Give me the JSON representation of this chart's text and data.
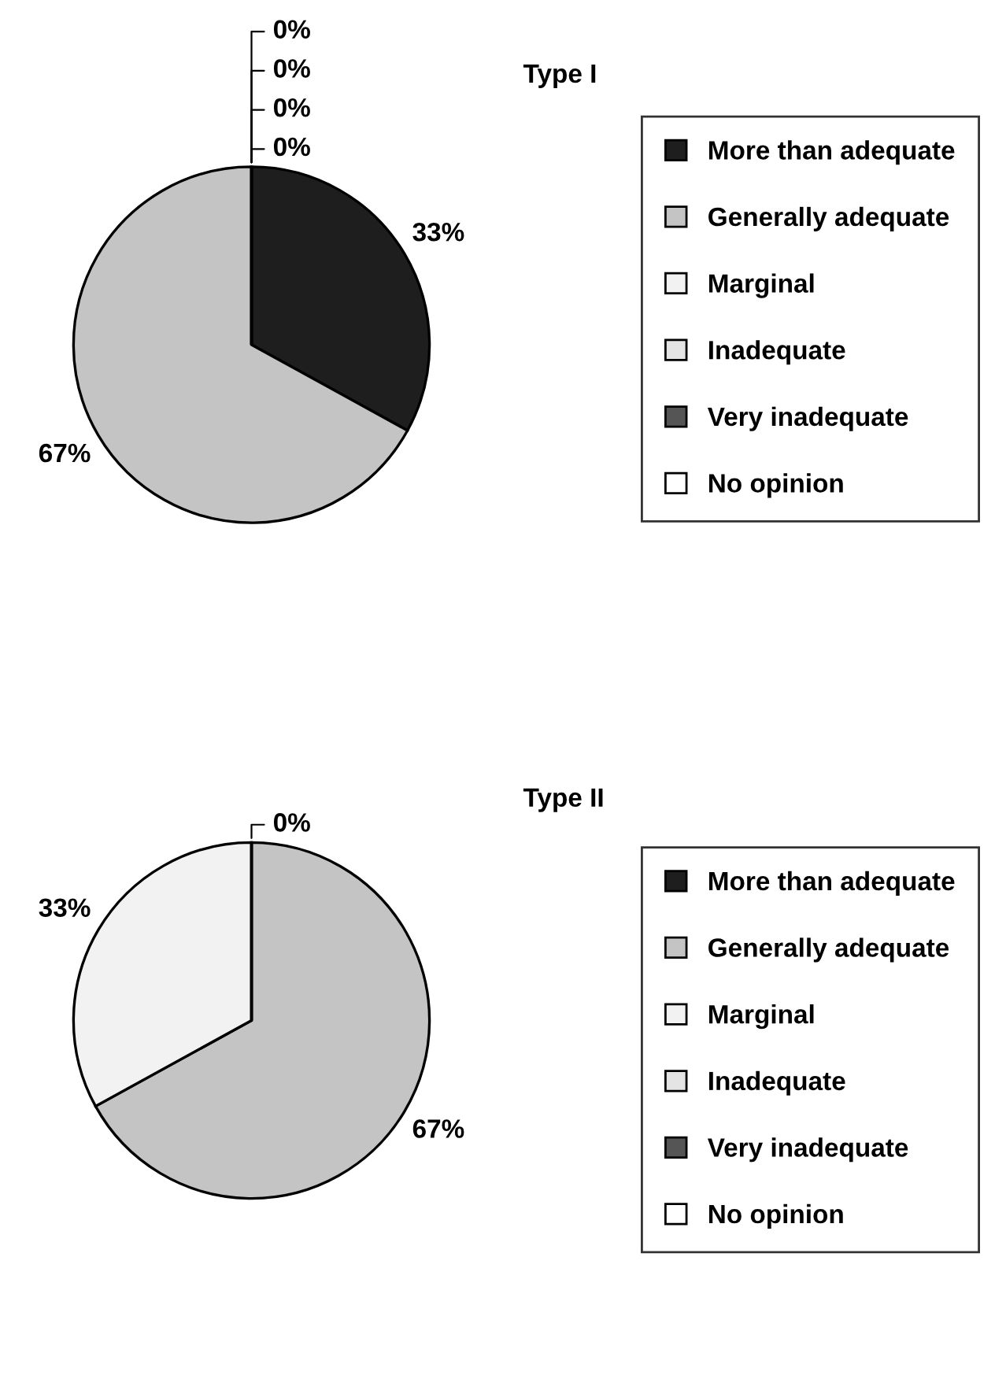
{
  "chart_data": [
    {
      "type": "pie",
      "title": "Type I",
      "categories": [
        "More than adequate",
        "Generally adequate",
        "Marginal",
        "Inadequate",
        "Very inadequate",
        "No opinion"
      ],
      "values": [
        33,
        67,
        0,
        0,
        0,
        0
      ],
      "colors": [
        "#1e1e1e",
        "#c4c4c4",
        "#f2f2f2",
        "#e4e4e4",
        "#555555",
        "#ffffff"
      ],
      "value_labels": [
        "33%",
        "67%",
        "0%",
        "0%",
        "0%",
        "0%"
      ],
      "legend": "right"
    },
    {
      "type": "pie",
      "title": "Type II",
      "categories": [
        "More than adequate",
        "Generally adequate",
        "Marginal",
        "Inadequate",
        "Very inadequate",
        "No opinion"
      ],
      "values": [
        0,
        67,
        33,
        0,
        0,
        0
      ],
      "colors": [
        "#1e1e1e",
        "#c4c4c4",
        "#f2f2f2",
        "#e4e4e4",
        "#555555",
        "#ffffff"
      ],
      "value_labels": [
        "0%",
        "67%",
        "33%",
        null,
        null,
        null
      ],
      "legend": "right"
    }
  ]
}
